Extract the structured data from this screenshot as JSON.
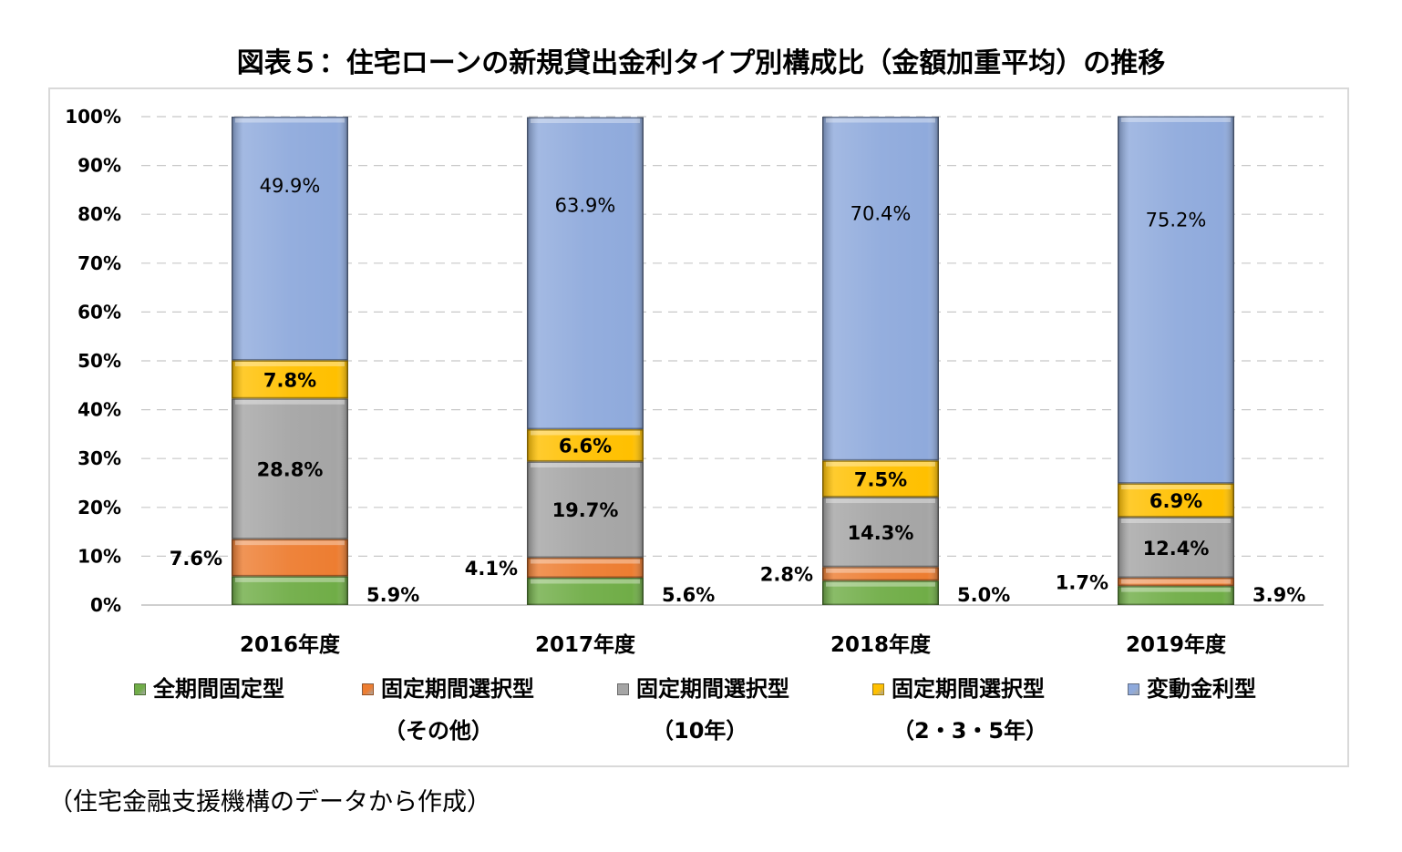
{
  "title": "図表５：住宅ローンの新規貸出金利タイプ別構成比（金額加重平均）の推移",
  "source": "（住宅金融支援機構のデータから作成）",
  "chart_data": {
    "type": "bar",
    "stacked": true,
    "categories": [
      "2016年度",
      "2017年度",
      "2018年度",
      "2019年度"
    ],
    "ylim": [
      0,
      100
    ],
    "yticks": [
      0,
      10,
      20,
      30,
      40,
      50,
      60,
      70,
      80,
      90,
      100
    ],
    "ytick_labels": [
      "0%",
      "10%",
      "20%",
      "30%",
      "40%",
      "50%",
      "60%",
      "70%",
      "80%",
      "90%",
      "100%"
    ],
    "grid": true,
    "legend_position": "bottom",
    "series": [
      {
        "key": "zenkikan",
        "name": "全期間固定型",
        "sub": "",
        "color": "#70ad47",
        "values": [
          5.9,
          5.6,
          5.0,
          3.9
        ],
        "labels": [
          "5.9%",
          "5.6%",
          "5.0%",
          "3.9%"
        ]
      },
      {
        "key": "other",
        "name": "固定期間選択型",
        "sub": "（その他）",
        "color": "#ed7d31",
        "values": [
          7.6,
          4.1,
          2.8,
          1.7
        ],
        "labels": [
          "7.6%",
          "4.1%",
          "2.8%",
          "1.7%"
        ]
      },
      {
        "key": "ten",
        "name": "固定期間選択型",
        "sub": "（10年）",
        "color": "#a5a5a5",
        "values": [
          28.8,
          19.7,
          14.3,
          12.4
        ],
        "labels": [
          "28.8%",
          "19.7%",
          "14.3%",
          "12.4%"
        ]
      },
      {
        "key": "short",
        "name": "固定期間選択型",
        "sub": "（2・3・5年）",
        "color": "#ffc000",
        "values": [
          7.8,
          6.6,
          7.5,
          6.9
        ],
        "labels": [
          "7.8%",
          "6.6%",
          "7.5%",
          "6.9%"
        ]
      },
      {
        "key": "variable",
        "name": "変動金利型",
        "sub": "",
        "color": "#8faadc",
        "values": [
          49.9,
          63.9,
          70.4,
          75.2
        ],
        "labels": [
          "49.9%",
          "63.9%",
          "70.4%",
          "75.2%"
        ]
      }
    ]
  }
}
